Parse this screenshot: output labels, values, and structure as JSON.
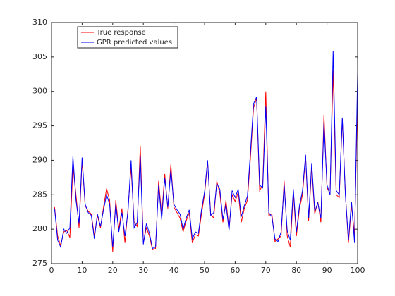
{
  "chart_data": {
    "type": "line",
    "x": [
      1,
      2,
      3,
      4,
      5,
      6,
      7,
      8,
      9,
      10,
      11,
      12,
      13,
      14,
      15,
      16,
      17,
      18,
      19,
      20,
      21,
      22,
      23,
      24,
      25,
      26,
      27,
      28,
      29,
      30,
      31,
      32,
      33,
      34,
      35,
      36,
      37,
      38,
      39,
      40,
      41,
      42,
      43,
      44,
      45,
      46,
      47,
      48,
      49,
      50,
      51,
      52,
      53,
      54,
      55,
      56,
      57,
      58,
      59,
      60,
      61,
      62,
      63,
      64,
      65,
      66,
      67,
      68,
      69,
      70,
      71,
      72,
      73,
      74,
      75,
      76,
      77,
      78,
      79,
      80,
      81,
      82,
      83,
      84,
      85,
      86,
      87,
      88,
      89,
      90,
      91,
      92,
      93,
      94,
      95,
      96,
      97,
      98,
      99,
      100
    ],
    "series": [
      {
        "name": "True response",
        "color": "#ff0000",
        "values": [
          283.2,
          279.0,
          277.6,
          279.6,
          279.8,
          278.8,
          289.2,
          285.0,
          280.2,
          290.0,
          283.4,
          282.6,
          282.2,
          279.0,
          282.0,
          280.2,
          283.2,
          285.9,
          284.2,
          276.7,
          284.2,
          280.0,
          283.0,
          278.0,
          283.0,
          289.0,
          281.0,
          280.4,
          292.1,
          278.0,
          280.2,
          279.0,
          277.0,
          277.2,
          287.0,
          282.0,
          288.0,
          283.0,
          289.4,
          283.2,
          282.4,
          281.6,
          279.6,
          281.2,
          282.4,
          278.0,
          279.2,
          279.0,
          282.2,
          285.0,
          289.8,
          282.2,
          281.6,
          287.0,
          285.2,
          281.0,
          284.2,
          280.0,
          285.0,
          284.0,
          285.4,
          281.0,
          283.0,
          284.2,
          290.4,
          297.6,
          299.0,
          285.6,
          286.4,
          300.0,
          282.0,
          282.2,
          278.2,
          278.6,
          279.0,
          287.0,
          279.0,
          277.4,
          285.2,
          279.0,
          283.0,
          285.0,
          290.6,
          281.2,
          289.0,
          282.2,
          284.0,
          281.0,
          296.6,
          286.0,
          285.2,
          303.0,
          285.0,
          284.6,
          296.0,
          285.2,
          278.0,
          283.4,
          279.2,
          299.4
        ]
      },
      {
        "name": "GPR predicted values",
        "color": "#0000ff",
        "values": [
          283.0,
          278.4,
          277.4,
          280.0,
          279.4,
          280.2,
          290.6,
          284.2,
          280.8,
          290.4,
          283.6,
          282.4,
          282.0,
          278.6,
          282.2,
          280.4,
          282.8,
          285.0,
          283.6,
          277.4,
          283.6,
          279.6,
          282.4,
          279.0,
          282.6,
          290.0,
          280.2,
          281.0,
          290.6,
          277.8,
          280.8,
          279.4,
          277.2,
          277.4,
          286.4,
          281.4,
          287.4,
          283.2,
          288.6,
          283.6,
          282.8,
          282.2,
          280.0,
          281.6,
          282.8,
          278.6,
          279.6,
          279.4,
          282.8,
          285.4,
          290.0,
          282.0,
          282.4,
          286.6,
          285.8,
          281.4,
          283.6,
          279.8,
          285.6,
          284.6,
          285.8,
          281.8,
          283.4,
          284.8,
          291.2,
          298.2,
          299.2,
          286.4,
          286.0,
          297.8,
          282.4,
          281.8,
          278.6,
          278.2,
          279.6,
          286.4,
          279.8,
          278.4,
          285.8,
          279.6,
          283.4,
          285.6,
          290.8,
          281.6,
          289.6,
          282.6,
          283.8,
          281.6,
          295.4,
          286.4,
          285.0,
          305.9,
          285.6,
          285.0,
          296.2,
          285.0,
          278.4,
          284.0,
          278.0,
          302.8
        ]
      }
    ],
    "xlim": [
      0,
      100
    ],
    "xticks": [
      0,
      10,
      20,
      30,
      40,
      50,
      60,
      70,
      80,
      90,
      100
    ],
    "ylim": [
      275,
      310
    ],
    "yticks": [
      275,
      280,
      285,
      290,
      295,
      300,
      305,
      310
    ],
    "legend": "upper-left"
  }
}
